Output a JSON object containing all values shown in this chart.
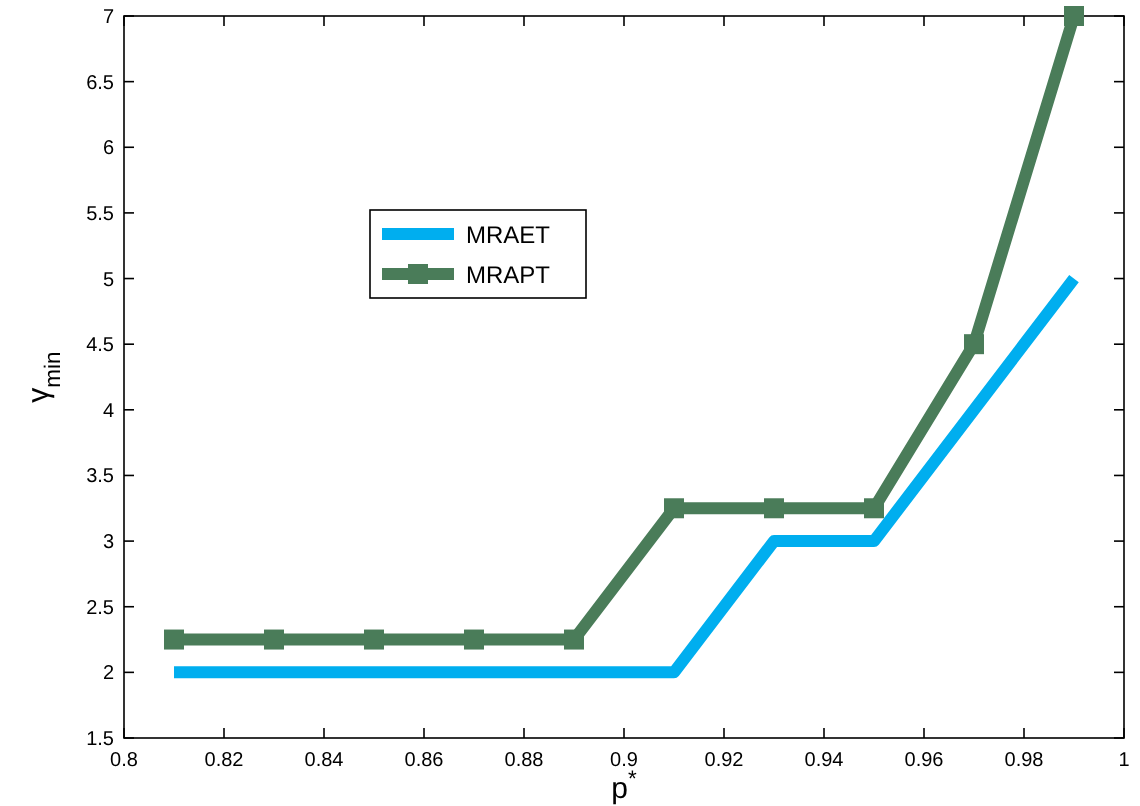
{
  "chart_data": {
    "type": "line",
    "xlabel": "p$^{*}$",
    "ylabel": "γ$_{min}$",
    "x": [
      0.81,
      0.83,
      0.85,
      0.87,
      0.89,
      0.91,
      0.93,
      0.95,
      0.97,
      0.99
    ],
    "series": [
      {
        "name": "MRAET",
        "color": "#00aeef",
        "values": [
          2,
          2,
          2,
          2,
          2,
          2,
          3,
          3,
          4,
          5
        ],
        "marker": "none"
      },
      {
        "name": "MRAPT",
        "color": "#4a7c59",
        "values": [
          2.25,
          2.25,
          2.25,
          2.25,
          2.25,
          3.25,
          3.25,
          3.25,
          4.5,
          7
        ],
        "marker": "square"
      }
    ],
    "xlim": [
      0.8,
      1
    ],
    "xticks": [
      0.8,
      0.82,
      0.84,
      0.86,
      0.88,
      0.9,
      0.92,
      0.94,
      0.96,
      0.98,
      1
    ],
    "ylim": [
      1.5,
      7
    ],
    "yticks": [
      1.5,
      2,
      2.5,
      3,
      3.5,
      4,
      4.5,
      5,
      5.5,
      6,
      6.5,
      7
    ],
    "grid": false,
    "legend": "top left",
    "line_style": "solid"
  }
}
